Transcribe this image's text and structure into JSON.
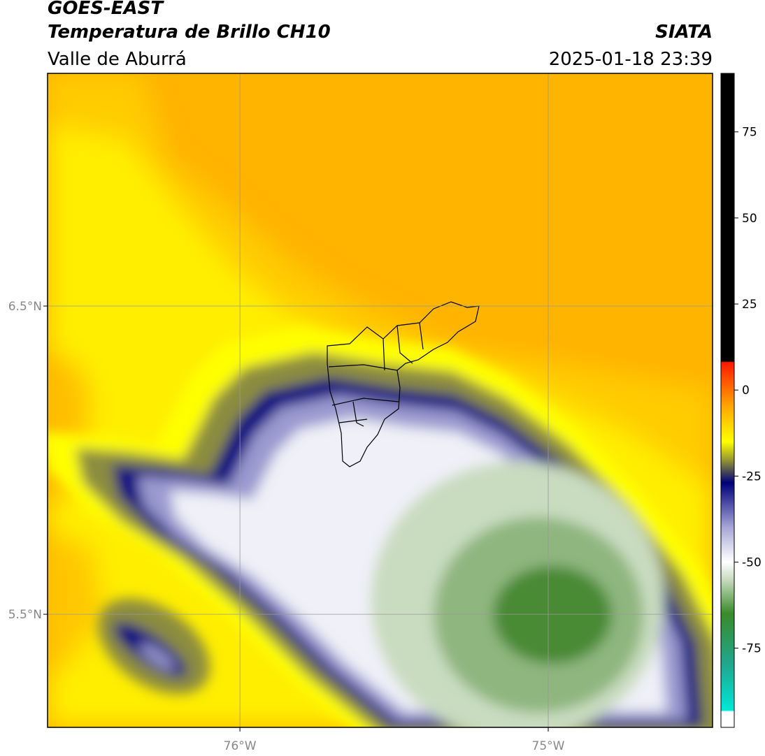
{
  "header": {
    "title": "GOES-EAST",
    "subtitle": "Temperatura de Brillo CH10",
    "source": "SIATA",
    "region": "Valle de Aburrá",
    "timestamp": "2025-01-18 23:39"
  },
  "map": {
    "lon_lim": [
      -76.624,
      -74.467
    ],
    "lat_lim": [
      5.133,
      7.255
    ],
    "lat_ticks": [
      {
        "value": 6.5,
        "label": "6.5°N"
      },
      {
        "value": 5.5,
        "label": "5.5°N"
      }
    ],
    "lon_ticks": [
      {
        "value": -76,
        "label": "76°W"
      },
      {
        "value": -75,
        "label": "75°W"
      }
    ]
  },
  "colorbar": {
    "lim": [
      -98,
      92
    ],
    "ticks": [
      75,
      50,
      25,
      0,
      -25,
      -50,
      -75
    ]
  }
}
